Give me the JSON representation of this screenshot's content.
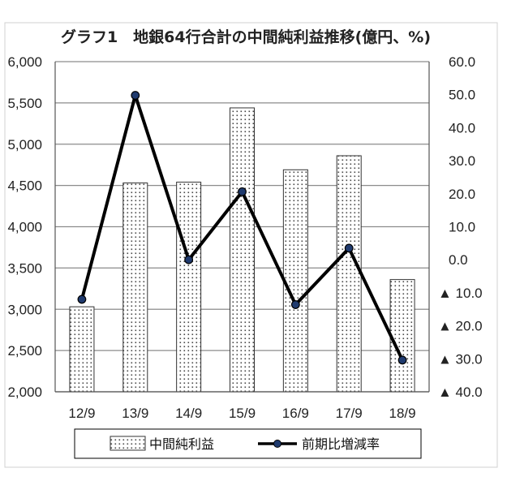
{
  "chart_data": {
    "type": "bar",
    "title": "グラフ1　地銀64行合計の中間純利益推移(億円、%)",
    "categories": [
      "12/9",
      "13/9",
      "14/9",
      "15/9",
      "16/9",
      "17/9",
      "18/9"
    ],
    "series": [
      {
        "name": "中間純利益",
        "type": "bar",
        "axis": "left",
        "values": [
          3030,
          4530,
          4540,
          5440,
          4690,
          4860,
          3360
        ]
      },
      {
        "name": "前期比増減率",
        "type": "line",
        "axis": "right",
        "values": [
          -12.0,
          49.8,
          0.0,
          20.6,
          -13.6,
          3.5,
          -30.4
        ]
      }
    ],
    "y_left": {
      "min": 2000,
      "max": 6000,
      "ticks": [
        2000,
        2500,
        3000,
        3500,
        4000,
        4500,
        5000,
        5500,
        6000
      ],
      "tick_labels": [
        "2,000",
        "2,500",
        "3,000",
        "3,500",
        "4,000",
        "4,500",
        "5,000",
        "5,500",
        "6,000"
      ]
    },
    "y_right": {
      "min": -40,
      "max": 60,
      "ticks": [
        60,
        50,
        40,
        30,
        20,
        10,
        0,
        -10,
        -20,
        -30,
        -40
      ],
      "tick_labels": [
        "60.0",
        "50.0",
        "40.0",
        "30.0",
        "20.0",
        "10.0",
        "0.0",
        "▲ 10.0",
        "▲ 20.0",
        "▲ 30.0",
        "▲ 40.0"
      ]
    },
    "grid": true,
    "legend_position": "bottom",
    "colors": {
      "line": "#000000",
      "marker": "#1f3a6e",
      "grid": "#8c8c8c",
      "bar_border": "#333333"
    }
  }
}
